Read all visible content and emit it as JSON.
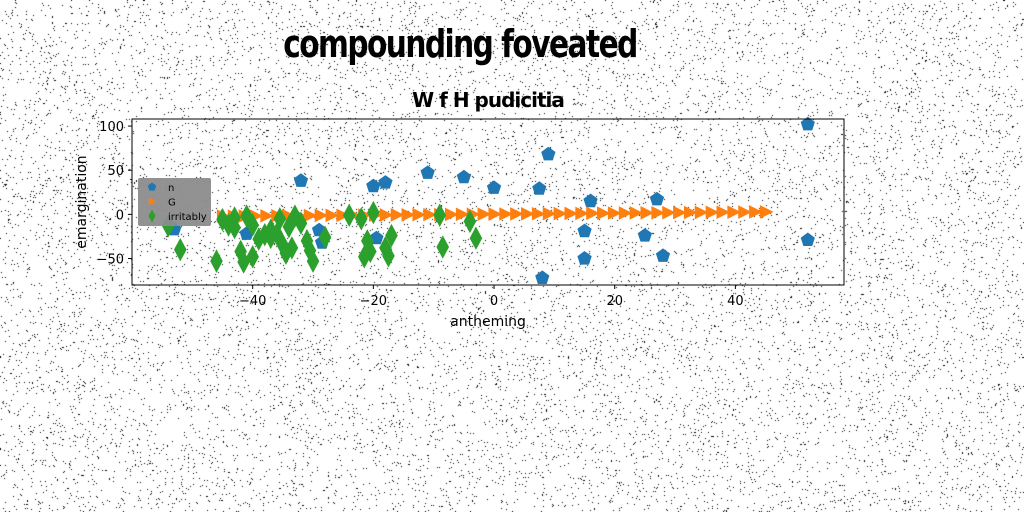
{
  "chart_data": {
    "type": "scatter",
    "suptitle": "compounding foveated",
    "title": "W f H pudicitia",
    "xlabel": "antheming",
    "ylabel": "emargination",
    "xlim": [
      -60,
      58
    ],
    "ylim": [
      -80,
      108
    ],
    "xticks": [
      -40,
      -20,
      0,
      20,
      40
    ],
    "yticks": [
      -50,
      0,
      50,
      100
    ],
    "legend_position": "center-left",
    "series": [
      {
        "name": "n",
        "color": "#1f77b4",
        "marker": "pentagon",
        "points": [
          [
            -53,
            -17
          ],
          [
            -32,
            38
          ],
          [
            -20,
            32
          ],
          [
            -18,
            36
          ],
          [
            -11,
            47
          ],
          [
            -5,
            42
          ],
          [
            0,
            30
          ],
          [
            7.5,
            29
          ],
          [
            9,
            68
          ],
          [
            16,
            15
          ],
          [
            15,
            -19
          ],
          [
            15,
            -50
          ],
          [
            8,
            -72
          ],
          [
            25,
            -24
          ],
          [
            27,
            17
          ],
          [
            28,
            -47
          ],
          [
            52,
            102
          ],
          [
            52,
            -29
          ],
          [
            -41,
            -22
          ],
          [
            -29,
            -18
          ],
          [
            -28.5,
            -32
          ],
          [
            -19.5,
            -27
          ]
        ]
      },
      {
        "name": "G",
        "color": "#ff7f0e",
        "marker": "triangle-right",
        "points": [
          [
            -45,
            -2
          ],
          [
            -43.2,
            -2
          ],
          [
            -41.4,
            -1.9
          ],
          [
            -39.6,
            -1.8
          ],
          [
            -37.8,
            -1.7
          ],
          [
            -36,
            -1.6
          ],
          [
            -34.2,
            -1.5
          ],
          [
            -32.4,
            -1.4
          ],
          [
            -30.6,
            -1.3
          ],
          [
            -28.8,
            -1.2
          ],
          [
            -27,
            -1.1
          ],
          [
            -25.2,
            -1.1
          ],
          [
            -23.4,
            -1
          ],
          [
            -21.6,
            -0.9
          ],
          [
            -19.8,
            -0.8
          ],
          [
            -18,
            -0.7
          ],
          [
            -16.2,
            -0.6
          ],
          [
            -14.4,
            -0.5
          ],
          [
            -12.6,
            -0.4
          ],
          [
            -10.8,
            -0.3
          ],
          [
            -9,
            -0.2
          ],
          [
            -7.2,
            -0.1
          ],
          [
            -5.4,
            0
          ],
          [
            -3.6,
            0.1
          ],
          [
            -1.8,
            0.2
          ],
          [
            0,
            0.3
          ],
          [
            1.8,
            0.4
          ],
          [
            3.6,
            0.5
          ],
          [
            5.4,
            0.6
          ],
          [
            7.2,
            0.7
          ],
          [
            9,
            0.8
          ],
          [
            10.8,
            0.9
          ],
          [
            12.6,
            1
          ],
          [
            14.4,
            1.1
          ],
          [
            16.2,
            1.2
          ],
          [
            18,
            1.3
          ],
          [
            19.8,
            1.4
          ],
          [
            21.6,
            1.5
          ],
          [
            23.4,
            1.6
          ],
          [
            25.2,
            1.7
          ],
          [
            27,
            1.8
          ],
          [
            28.8,
            1.9
          ],
          [
            30.6,
            2
          ],
          [
            32.4,
            2.1
          ],
          [
            34.2,
            2.2
          ],
          [
            36,
            2.3
          ],
          [
            37.8,
            2.4
          ],
          [
            39.6,
            2.5
          ],
          [
            41.4,
            2.6
          ],
          [
            43.2,
            2.7
          ],
          [
            45,
            2.8
          ]
        ]
      },
      {
        "name": "irritably",
        "color": "#2ca02c",
        "marker": "thin-diamond",
        "points": [
          [
            -54,
            -13
          ],
          [
            -52,
            -40
          ],
          [
            -46,
            -53
          ],
          [
            -45,
            -6
          ],
          [
            -44,
            -12
          ],
          [
            -43,
            -4
          ],
          [
            -42,
            -42
          ],
          [
            -41.5,
            -54
          ],
          [
            -41,
            -2
          ],
          [
            -40,
            -12
          ],
          [
            -39,
            -28
          ],
          [
            -38,
            -23
          ],
          [
            -37,
            -26
          ],
          [
            -36,
            -22
          ],
          [
            -35.5,
            -5
          ],
          [
            -35,
            -35
          ],
          [
            -34.5,
            -44
          ],
          [
            -34,
            -14
          ],
          [
            -33.5,
            -38
          ],
          [
            -33,
            -2
          ],
          [
            -32,
            -10
          ],
          [
            -31,
            -30
          ],
          [
            -30.5,
            -41
          ],
          [
            -30,
            -53
          ],
          [
            -28,
            -26
          ],
          [
            -24,
            -1
          ],
          [
            -22,
            -5
          ],
          [
            -21.5,
            -48
          ],
          [
            -21,
            -30
          ],
          [
            -20.5,
            -42
          ],
          [
            -20,
            2
          ],
          [
            -18,
            -38
          ],
          [
            -17.5,
            -47
          ],
          [
            -17,
            -24
          ],
          [
            -9,
            -1
          ],
          [
            -8.5,
            -37
          ],
          [
            -4,
            -8
          ],
          [
            -3,
            -27
          ],
          [
            -40,
            -48
          ],
          [
            -43,
            -15
          ],
          [
            -37,
            -18
          ]
        ]
      }
    ]
  }
}
